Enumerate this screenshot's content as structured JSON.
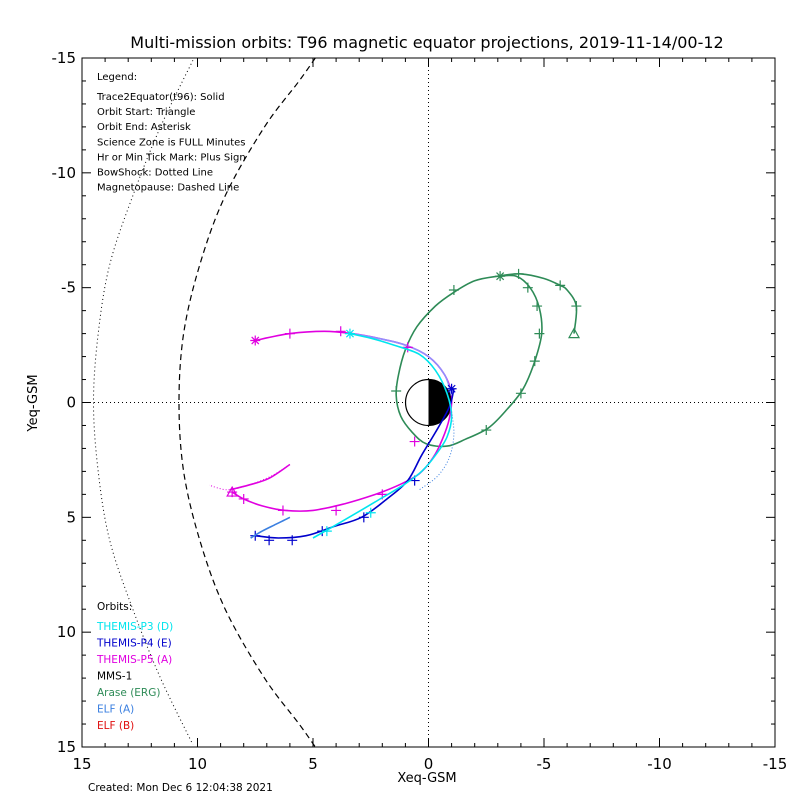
{
  "chart_data": {
    "type": "scatter",
    "title": "Multi-mission orbits: T96 magnetic equator projections, 2019-11-14/00-12",
    "xlabel": "Xeq-GSM",
    "ylabel": "Yeq-GSM",
    "xlim": [
      15,
      -15
    ],
    "ylim": [
      15,
      -15
    ],
    "x_ticks": [
      "15",
      "10",
      "5",
      "0",
      "-5",
      "-10",
      "-15"
    ],
    "y_ticks": [
      "-15",
      "-10",
      "-5",
      "0",
      "5",
      "10",
      "15"
    ],
    "legend_title": "Legend:",
    "legend_lines": [
      "Trace2Equator(t96): Solid",
      "Orbit Start: Triangle",
      "Orbit End: Asterisk",
      "Science Zone is FULL Minutes",
      "Hr or Min Tick Mark: Plus Sign",
      "BowShock: Dotted Line",
      "Magnetopause: Dashed Line"
    ],
    "orbits_title": "Orbits:",
    "orbits": [
      {
        "label": "THEMIS-P3 (D)",
        "color": "#00e5ee"
      },
      {
        "label": "THEMIS-P4 (E)",
        "color": "#0000cc"
      },
      {
        "label": "THEMIS-P5 (A)",
        "color": "#e000e0"
      },
      {
        "label": "MMS-1",
        "color": "#000000"
      },
      {
        "label": "Arase (ERG)",
        "color": "#2e8b57"
      },
      {
        "label": "ELF (A)",
        "color": "#3a7fe0"
      },
      {
        "label": "ELF (B)",
        "color": "#e01010"
      }
    ],
    "created": "Created: Mon Dec  6 12:04:38 2021",
    "bowshock": [
      [
        14.5,
        0
      ],
      [
        14.3,
        3
      ],
      [
        13.8,
        6
      ],
      [
        12.8,
        9
      ],
      [
        11.6,
        12
      ],
      [
        10.2,
        14.9
      ]
    ],
    "magnetopause": [
      [
        10.8,
        0
      ],
      [
        10.6,
        3
      ],
      [
        9.9,
        6
      ],
      [
        8.8,
        9
      ],
      [
        7.1,
        12
      ],
      [
        5.6,
        14
      ],
      [
        4.9,
        15
      ]
    ],
    "series": [
      {
        "name": "Arase (ERG)",
        "color": "#2e8b57",
        "points": [
          [
            -6.3,
            -3.0
          ],
          [
            -6.4,
            -4.2
          ],
          [
            -6.0,
            -4.9
          ],
          [
            -5.7,
            -5.1
          ],
          [
            -5.0,
            -5.4
          ],
          [
            -4.0,
            -5.6
          ],
          [
            -3.0,
            -5.5
          ],
          [
            -2.0,
            -5.3
          ],
          [
            -1.1,
            -4.8
          ],
          [
            -0.3,
            -4.2
          ],
          [
            0.5,
            -3.3
          ],
          [
            1.0,
            -2.3
          ],
          [
            1.3,
            -1.2
          ],
          [
            1.4,
            -0.3
          ],
          [
            1.2,
            0.6
          ],
          [
            0.7,
            1.3
          ],
          [
            0.1,
            1.8
          ],
          [
            -0.8,
            1.9
          ],
          [
            -1.6,
            1.6
          ],
          [
            -2.6,
            1.1
          ],
          [
            -3.4,
            0.3
          ],
          [
            -4.1,
            -0.6
          ],
          [
            -4.6,
            -1.8
          ],
          [
            -4.9,
            -3.0
          ],
          [
            -4.8,
            -4.1
          ],
          [
            -4.4,
            -5.0
          ],
          [
            -3.8,
            -5.5
          ],
          [
            -3.1,
            -5.5
          ]
        ],
        "ticks": [
          [
            -6.4,
            -4.2
          ],
          [
            -5.7,
            -5.1
          ],
          [
            -3.9,
            -5.6
          ],
          [
            -1.1,
            -4.9
          ],
          [
            1.4,
            -0.5
          ],
          [
            -2.5,
            1.2
          ],
          [
            -4.0,
            -0.4
          ],
          [
            -4.6,
            -1.8
          ],
          [
            -4.8,
            -3.0
          ],
          [
            -4.7,
            -4.2
          ],
          [
            -4.3,
            -5.0
          ]
        ],
        "start": [
          -6.3,
          -3.0
        ],
        "end": [
          -3.1,
          -5.5
        ]
      },
      {
        "name": "THEMIS-P5 (A)",
        "color": "#e000e0",
        "points": [
          [
            7.5,
            -2.7
          ],
          [
            6.0,
            -3.0
          ],
          [
            4.5,
            -3.1
          ],
          [
            3.3,
            -3.0
          ],
          [
            2.2,
            -2.8
          ],
          [
            1.0,
            -2.5
          ],
          [
            0.0,
            -2.0
          ],
          [
            -0.7,
            -1.2
          ],
          [
            -1.0,
            -0.3
          ],
          [
            -0.9,
            0.7
          ],
          [
            -0.6,
            1.6
          ],
          [
            -0.2,
            2.4
          ],
          [
            0.4,
            3.1
          ],
          [
            1.3,
            3.6
          ],
          [
            2.3,
            4.0
          ],
          [
            3.6,
            4.4
          ],
          [
            5.0,
            4.7
          ],
          [
            6.2,
            4.7
          ],
          [
            7.2,
            4.5
          ],
          [
            8.0,
            4.2
          ],
          [
            8.5,
            3.9
          ]
        ],
        "ticks": [
          [
            6.0,
            -3.0
          ],
          [
            3.8,
            -3.1
          ],
          [
            0.9,
            -2.4
          ],
          [
            0.6,
            1.7
          ],
          [
            2.0,
            4.0
          ],
          [
            4.0,
            4.7
          ],
          [
            6.3,
            4.7
          ],
          [
            8.0,
            4.2
          ],
          [
            8.5,
            3.9
          ]
        ],
        "start": [
          8.5,
          3.9
        ],
        "end": [
          7.5,
          -2.7
        ],
        "science_zone": [
          [
            3.3,
            -3.0
          ],
          [
            2.2,
            -2.8
          ],
          [
            1.0,
            -2.5
          ],
          [
            0.0,
            -2.0
          ],
          [
            -0.7,
            -1.2
          ],
          [
            -1.0,
            -0.3
          ]
        ]
      },
      {
        "name": "THEMIS-P5 (A) trace",
        "color": "#e000e0",
        "points": [
          [
            6.0,
            2.7
          ],
          [
            6.8,
            3.2
          ],
          [
            7.8,
            3.6
          ],
          [
            8.7,
            3.8
          ],
          [
            9.5,
            3.6
          ]
        ],
        "dotted": true
      },
      {
        "name": "THEMIS-P4 (E)",
        "color": "#0000cc",
        "points": [
          [
            7.5,
            5.8
          ],
          [
            6.5,
            5.9
          ],
          [
            5.3,
            5.8
          ],
          [
            4.1,
            5.4
          ],
          [
            2.9,
            5.0
          ],
          [
            1.8,
            4.2
          ],
          [
            0.9,
            3.4
          ],
          [
            0.3,
            2.3
          ],
          [
            -0.3,
            1.3
          ],
          [
            -0.9,
            0.2
          ],
          [
            -1.1,
            -0.6
          ]
        ],
        "ticks": [
          [
            7.5,
            5.8
          ],
          [
            6.9,
            6.0
          ],
          [
            5.9,
            6.0
          ],
          [
            4.6,
            5.6
          ],
          [
            2.8,
            5.0
          ],
          [
            0.6,
            3.4
          ]
        ],
        "end": [
          -1.0,
          -0.6
        ]
      },
      {
        "name": "THEMIS-P3 (D)",
        "color": "#00e5ee",
        "points": [
          [
            3.4,
            -3.0
          ],
          [
            2.5,
            -2.8
          ],
          [
            1.5,
            -2.5
          ],
          [
            0.4,
            -2.1
          ],
          [
            -0.3,
            -1.4
          ],
          [
            -0.8,
            -0.4
          ],
          [
            -1.0,
            0.6
          ],
          [
            -0.8,
            1.5
          ],
          [
            -0.3,
            2.3
          ],
          [
            0.3,
            3.0
          ],
          [
            1.1,
            3.6
          ],
          [
            2.1,
            4.2
          ],
          [
            3.1,
            4.8
          ],
          [
            4.3,
            5.5
          ],
          [
            5.0,
            5.9
          ]
        ],
        "ticks": [
          [
            4.4,
            5.6
          ],
          [
            2.5,
            4.8
          ]
        ],
        "end": [
          3.4,
          -3.0
        ]
      },
      {
        "name": "ELF (A)",
        "color": "#3a7fe0",
        "points": [
          [
            6.0,
            5.0
          ],
          [
            6.6,
            5.3
          ],
          [
            7.2,
            5.6
          ],
          [
            7.7,
            5.9
          ]
        ]
      },
      {
        "name": "ELF (A) trace",
        "color": "#3a7fe0",
        "points": [
          [
            -1.0,
            0.4
          ],
          [
            -1.1,
            1.4
          ],
          [
            -0.9,
            2.4
          ],
          [
            -0.4,
            3.2
          ],
          [
            0.4,
            3.8
          ]
        ],
        "dotted": true
      },
      {
        "name": "THEMIS-P5 (A) pre",
        "color": "#e000e0",
        "points": [
          [
            6.0,
            2.7
          ],
          [
            6.9,
            3.3
          ],
          [
            7.8,
            3.6
          ],
          [
            8.6,
            3.8
          ]
        ]
      }
    ]
  }
}
